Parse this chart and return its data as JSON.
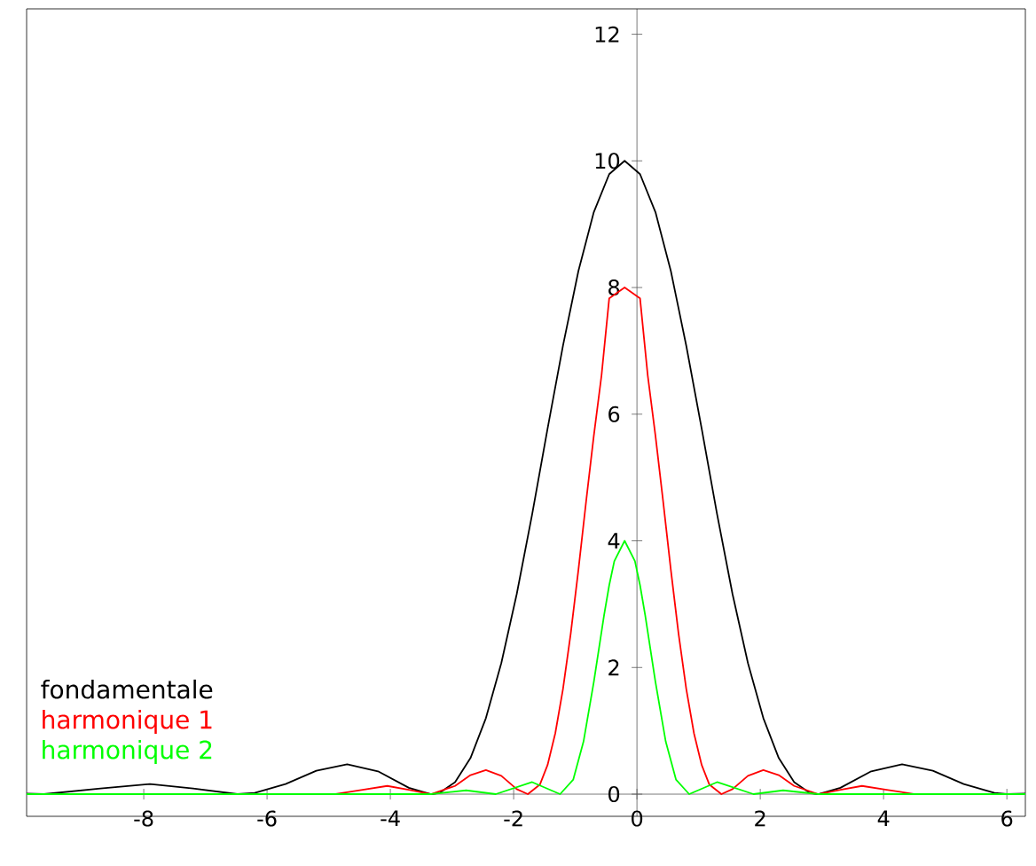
{
  "chart_data": {
    "type": "line",
    "xlim": [
      -9.9,
      6.3
    ],
    "ylim": [
      -0.35,
      12.4
    ],
    "xticks": [
      -8,
      -6,
      -4,
      -2,
      0,
      2,
      4,
      6
    ],
    "yticks": [
      0,
      2,
      4,
      6,
      8,
      10,
      12
    ],
    "legend": "bottom left",
    "series": [
      {
        "name": "fondamentale",
        "color": "#000000",
        "x": [
          -9.9,
          -9.62,
          -8.7,
          -7.9,
          -7.2,
          -6.48,
          -6.2,
          -5.7,
          -5.2,
          -4.7,
          -4.2,
          -3.7,
          -3.34,
          -3.2,
          -2.95,
          -2.7,
          -2.45,
          -2.2,
          -1.95,
          -1.7,
          -1.45,
          -1.2,
          -0.95,
          -0.7,
          -0.45,
          -0.2,
          0.05,
          0.3,
          0.55,
          0.8,
          1.05,
          1.3,
          1.55,
          1.8,
          2.05,
          2.3,
          2.55,
          2.8,
          2.94,
          3.3,
          3.8,
          4.3,
          4.8,
          5.3,
          5.8,
          6.0,
          6.3
        ],
        "values": [
          0.01,
          0,
          0.09,
          0.16,
          0.09,
          0,
          0.02,
          0.16,
          0.37,
          0.47,
          0.36,
          0.1,
          0,
          0.02,
          0.19,
          0.57,
          1.2,
          2.07,
          3.16,
          4.42,
          5.77,
          7.08,
          8.26,
          9.19,
          9.79,
          10,
          9.79,
          9.19,
          8.26,
          7.08,
          5.77,
          4.42,
          3.16,
          2.07,
          1.2,
          0.57,
          0.19,
          0.02,
          0,
          0.1,
          0.36,
          0.47,
          0.37,
          0.16,
          0.02,
          0,
          0.01
        ]
      },
      {
        "name": "harmonique 1",
        "color": "#ff0000",
        "x": [
          -9.9,
          -4.91,
          -4.45,
          -4.05,
          -3.7,
          -3.34,
          -2.95,
          -2.7,
          -2.45,
          -2.2,
          -1.95,
          -1.77,
          -1.575,
          -1.45,
          -1.325,
          -1.2,
          -1.075,
          -0.95,
          -0.825,
          -0.7,
          -0.575,
          -0.45,
          -0.2,
          0.05,
          0.175,
          0.3,
          0.425,
          0.55,
          0.675,
          0.8,
          0.925,
          1.05,
          1.175,
          1.37,
          1.55,
          1.8,
          2.05,
          2.3,
          2.55,
          2.94,
          3.3,
          3.65,
          4.05,
          4.51,
          6.3
        ],
        "values": [
          0,
          0,
          0.07,
          0.13,
          0.07,
          0,
          0.13,
          0.3,
          0.38,
          0.29,
          0.08,
          0,
          0.15,
          0.46,
          0.96,
          1.66,
          2.53,
          3.54,
          4.62,
          5.66,
          6.61,
          7.83,
          8,
          7.83,
          6.61,
          5.66,
          4.62,
          3.54,
          2.53,
          1.66,
          0.96,
          0.46,
          0.15,
          0,
          0.08,
          0.29,
          0.38,
          0.3,
          0.13,
          0,
          0.07,
          0.13,
          0.07,
          0,
          0
        ]
      },
      {
        "name": "harmonique 2",
        "color": "#00ff00",
        "x": [
          -9.9,
          -3.34,
          -2.77,
          -2.29,
          -1.7,
          -1.247,
          -1.033,
          -0.867,
          -0.7,
          -0.533,
          -0.45,
          -0.367,
          -0.2,
          -0.033,
          0.05,
          0.133,
          0.3,
          0.467,
          0.633,
          0.847,
          1.3,
          1.89,
          2.37,
          2.94,
          6.3
        ],
        "values": [
          0,
          0,
          0.06,
          0,
          0.19,
          0,
          0.23,
          0.83,
          1.77,
          2.83,
          3.3,
          3.68,
          4,
          3.68,
          3.3,
          2.83,
          1.77,
          0.83,
          0.23,
          0,
          0.19,
          0,
          0.06,
          0,
          0
        ]
      }
    ]
  }
}
